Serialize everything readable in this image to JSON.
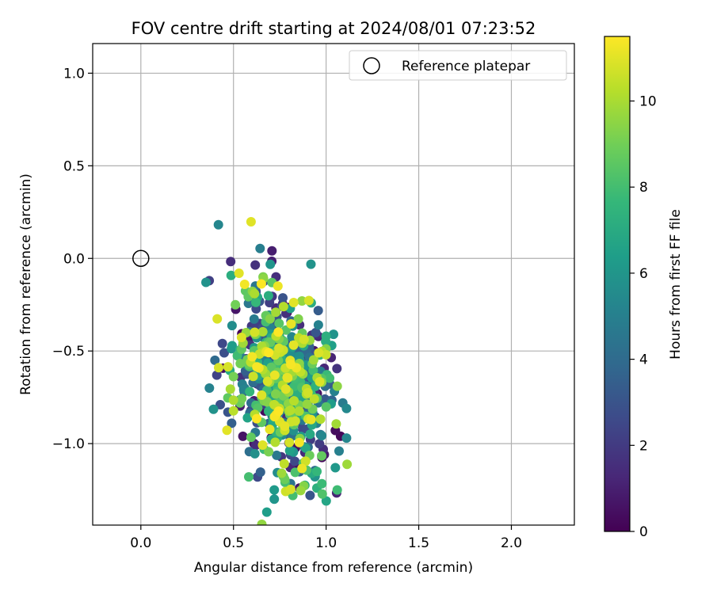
{
  "chart_data": {
    "type": "scatter",
    "title": "FOV centre drift starting at 2024/08/01 07:23:52",
    "xlabel": "Angular distance from reference (arcmin)",
    "ylabel": "Rotation from reference (arcmin)",
    "xlim": [
      -0.26,
      2.34
    ],
    "ylim": [
      -1.44,
      1.16
    ],
    "xticks": [
      0.0,
      0.5,
      1.0,
      1.5,
      2.0
    ],
    "yticks": [
      1.0,
      0.5,
      0.0,
      -0.5,
      -1.0
    ],
    "xtick_labels": [
      "0.0",
      "0.5",
      "1.0",
      "1.5",
      "2.0"
    ],
    "ytick_labels": [
      "1.0",
      "0.5",
      "0.0",
      "−0.5",
      "−1.0"
    ],
    "grid": true,
    "legend": {
      "position": "top-right",
      "entries": [
        "Reference platepar"
      ]
    },
    "reference_point": {
      "name": "Reference platepar",
      "x": 0.0,
      "y": 0.0,
      "marker": "open-circle"
    },
    "colorbar": {
      "label": "Hours from first FF file",
      "range": [
        0,
        11.5
      ],
      "ticks": [
        0,
        2,
        4,
        6,
        8,
        10
      ],
      "tick_labels": [
        "0",
        "2",
        "4",
        "6",
        "8",
        "10"
      ],
      "colormap": "viridis"
    },
    "colormap_stops": [
      "#440154",
      "#482878",
      "#3e4989",
      "#31688e",
      "#26828e",
      "#1f9e89",
      "#35b779",
      "#6ece58",
      "#b5de2b",
      "#fde725"
    ],
    "scatter_generation": {
      "count": 650,
      "x_mean": 0.76,
      "y_mean": -0.66,
      "x_sd": 0.13,
      "y_sd": 0.24,
      "correlation": -0.35,
      "hours_max": 11.5
    },
    "scatter_points": [
      {
        "x": 0.66,
        "y": -0.1,
        "hours": 9.2
      },
      {
        "x": 0.53,
        "y": -0.08,
        "hours": 11.0
      },
      {
        "x": 0.56,
        "y": -0.14,
        "hours": 11.3
      },
      {
        "x": 0.74,
        "y": -0.15,
        "hours": 11.2
      },
      {
        "x": 0.59,
        "y": -0.2,
        "hours": 0.3
      },
      {
        "x": 0.63,
        "y": -0.21,
        "hours": 6.8
      },
      {
        "x": 0.87,
        "y": -0.23,
        "hours": 9.6
      },
      {
        "x": 0.92,
        "y": -0.24,
        "hours": 7.1
      },
      {
        "x": 0.51,
        "y": -0.25,
        "hours": 9.0
      },
      {
        "x": 0.77,
        "y": -0.26,
        "hours": 10.2
      },
      {
        "x": 0.4,
        "y": -0.55,
        "hours": 4.0
      },
      {
        "x": 0.37,
        "y": -0.7,
        "hours": 5.1
      },
      {
        "x": 0.45,
        "y": -0.51,
        "hours": 2.8
      },
      {
        "x": 0.41,
        "y": -0.63,
        "hours": 2.3
      },
      {
        "x": 0.44,
        "y": -0.46,
        "hours": 2.5
      },
      {
        "x": 0.42,
        "y": -0.59,
        "hours": 10.8
      },
      {
        "x": 0.49,
        "y": -0.89,
        "hours": 3.5
      },
      {
        "x": 0.47,
        "y": -0.83,
        "hours": 3.0
      },
      {
        "x": 0.63,
        "y": -1.18,
        "hours": 2.6
      },
      {
        "x": 0.68,
        "y": -1.37,
        "hours": 6.4
      },
      {
        "x": 0.72,
        "y": -1.3,
        "hours": 6.0
      },
      {
        "x": 0.72,
        "y": -1.25,
        "hours": 6.2
      },
      {
        "x": 0.82,
        "y": -1.28,
        "hours": 8.0
      },
      {
        "x": 0.76,
        "y": -1.16,
        "hours": 9.8
      },
      {
        "x": 0.95,
        "y": -1.24,
        "hours": 7.3
      },
      {
        "x": 1.06,
        "y": -1.25,
        "hours": 7.9
      },
      {
        "x": 1.05,
        "y": -1.13,
        "hours": 6.1
      },
      {
        "x": 0.95,
        "y": -1.15,
        "hours": 7.6
      },
      {
        "x": 1.07,
        "y": -1.04,
        "hours": 5.0
      },
      {
        "x": 1.11,
        "y": -0.97,
        "hours": 5.3
      },
      {
        "x": 1.11,
        "y": -0.81,
        "hours": 5.4
      },
      {
        "x": 1.09,
        "y": -0.78,
        "hours": 4.8
      },
      {
        "x": 1.06,
        "y": -0.69,
        "hours": 9.5
      },
      {
        "x": 1.04,
        "y": -0.41,
        "hours": 5.9
      },
      {
        "x": 1.03,
        "y": -0.47,
        "hours": 6.5
      },
      {
        "x": 1.0,
        "y": -0.42,
        "hours": 7.2
      },
      {
        "x": 1.0,
        "y": -0.52,
        "hours": 10.6
      },
      {
        "x": 0.96,
        "y": -0.51,
        "hours": 10.9
      }
    ]
  }
}
